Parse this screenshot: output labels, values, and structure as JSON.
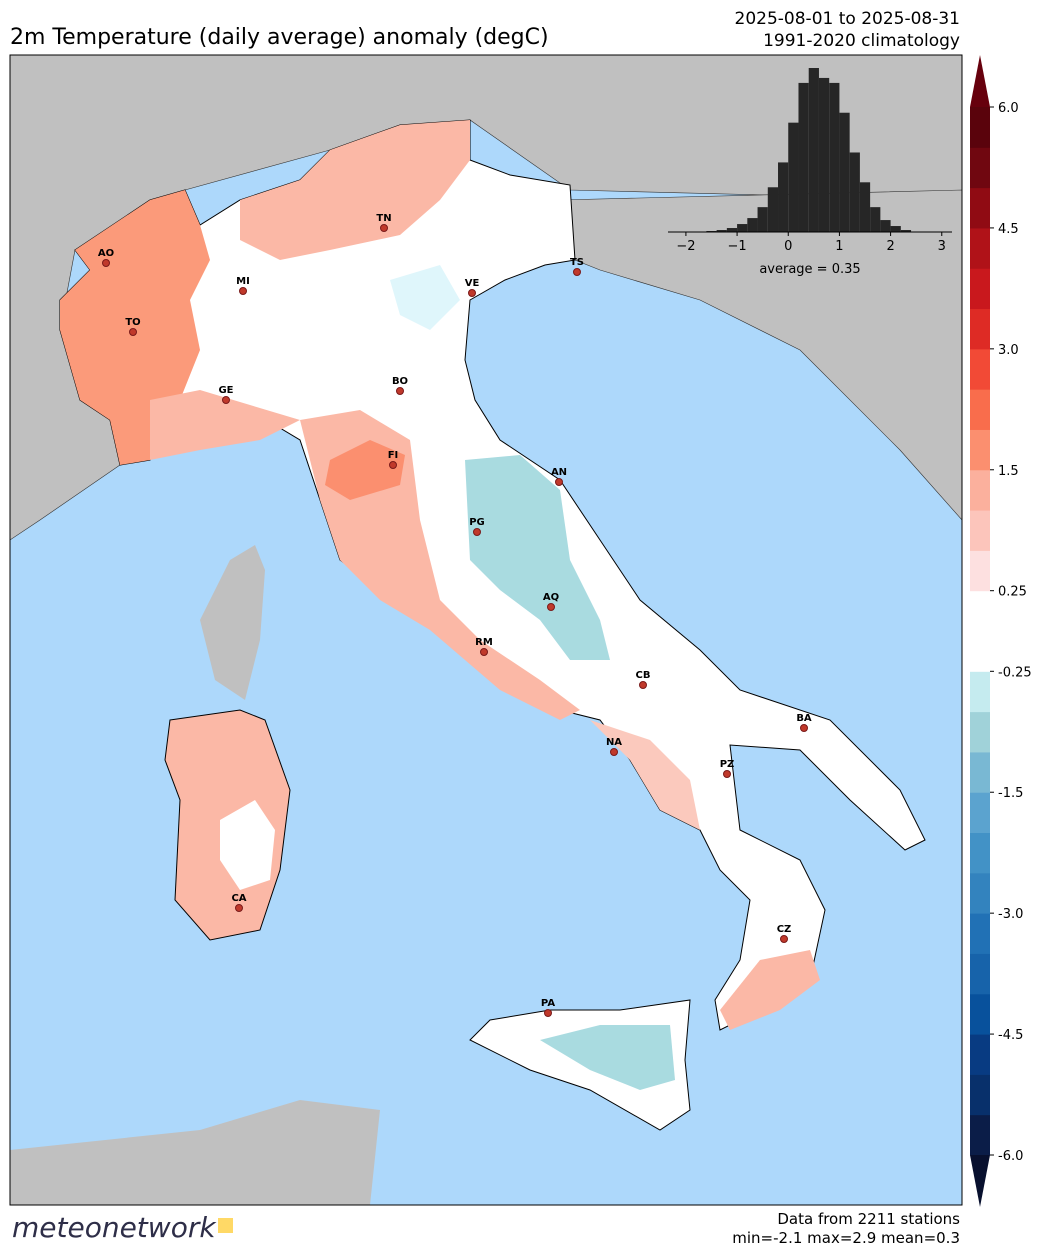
{
  "header": {
    "title": "2m Temperature (daily average) anomaly (degC)",
    "period": "2025-08-01 to 2025-08-31",
    "climatology": "1991-2020 climatology"
  },
  "cities": [
    "AO",
    "TO",
    "MI",
    "GE",
    "TN",
    "VE",
    "TS",
    "BO",
    "FI",
    "AN",
    "PG",
    "AQ",
    "RM",
    "CB",
    "NA",
    "BA",
    "PZ",
    "CA",
    "CZ",
    "PA"
  ],
  "colorbar": {
    "colors": [
      "#0b1d48",
      "#08306b",
      "#083b82",
      "#08519c",
      "#1763aa",
      "#2171b5",
      "#3383be",
      "#4292c6",
      "#5ba3cf",
      "#79b8d3",
      "#a0d2d9",
      "#c5ebef",
      "#ffffff",
      "#ffffff",
      "#fde0e0",
      "#fcc5bb",
      "#fbb09d",
      "#fb8f6f",
      "#f96d4c",
      "#f24a36",
      "#de2b25",
      "#c9181d",
      "#b01218",
      "#900b13",
      "#700710",
      "#5a030c"
    ],
    "ticks": [
      {
        "value": 6,
        "label": "6.0"
      },
      {
        "value": 4.5,
        "label": "4.5"
      },
      {
        "value": 3,
        "label": "3.0"
      },
      {
        "value": 1.5,
        "label": "1.5"
      },
      0.25,
      -0.25,
      {
        "value": -1.5,
        "label": "-1.5"
      },
      {
        "value": -3,
        "label": "-3.0"
      },
      {
        "value": -4.5,
        "label": "-4.5"
      },
      {
        "value": -6,
        "label": "-6.0"
      }
    ]
  },
  "histogram": {
    "bins": [
      -1.6,
      -1.4,
      -1.2,
      -1.0,
      -0.8,
      -0.6,
      -0.4,
      -0.2,
      0.0,
      0.2,
      0.4,
      0.6,
      0.8,
      1.0,
      1.2,
      1.4,
      1.6,
      1.8,
      2.0,
      2.2,
      2.4
    ],
    "counts": [
      1,
      2,
      4,
      8,
      14,
      25,
      45,
      70,
      110,
      150,
      165,
      155,
      150,
      120,
      80,
      50,
      25,
      12,
      6,
      2
    ],
    "color": "#262626",
    "xlim": [
      -2.35,
      3.2
    ],
    "xticks": [
      {
        "value": -2,
        "label": "−2"
      },
      {
        "value": -1,
        "label": "−1"
      },
      0,
      1,
      2,
      3
    ],
    "average": "average = 0.35"
  },
  "footer": {
    "logo": "meteonetwork",
    "stations": "Data from 2211 stations",
    "stats": "min=-2.1 max=2.9 mean=0.3"
  }
}
